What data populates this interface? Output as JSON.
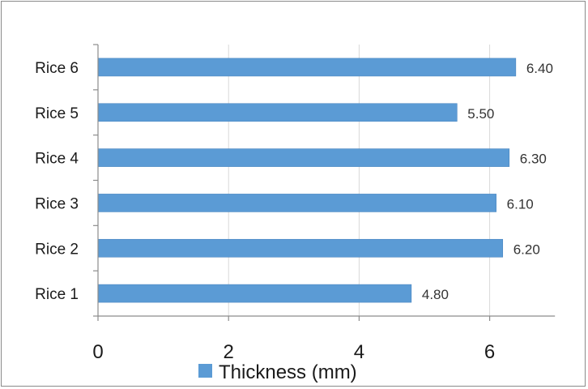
{
  "chart_data": {
    "type": "bar",
    "orientation": "horizontal",
    "categories": [
      "Rice 1",
      "Rice 2",
      "Rice 3",
      "Rice 4",
      "Rice 5",
      "Rice 6"
    ],
    "series": [
      {
        "name": "Thickness (mm)",
        "values": [
          4.8,
          6.2,
          6.1,
          6.3,
          5.5,
          6.4
        ],
        "data_labels": [
          "4.80",
          "6.20",
          "6.10",
          "6.30",
          "5.50",
          "6.40"
        ],
        "color": "#5b9bd5"
      }
    ],
    "xlim": [
      0,
      7
    ],
    "x_ticks": [
      0,
      2,
      4,
      6
    ],
    "x_tick_labels": [
      "0",
      "2",
      "4",
      "6"
    ],
    "grid": true,
    "legend_position": "bottom"
  }
}
